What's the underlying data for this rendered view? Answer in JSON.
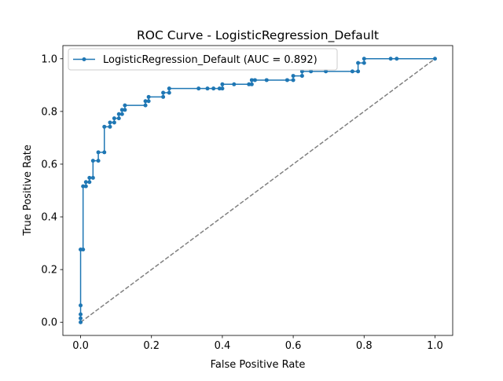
{
  "chart_data": {
    "type": "line",
    "title": "ROC Curve - LogisticRegression_Default",
    "xlabel": "False Positive Rate",
    "ylabel": "True Positive Rate",
    "xlim": [
      -0.05,
      1.05
    ],
    "ylim": [
      -0.05,
      1.05
    ],
    "xticks": [
      "0.0",
      "0.2",
      "0.4",
      "0.6",
      "0.8",
      "1.0"
    ],
    "yticks": [
      "0.0",
      "0.2",
      "0.4",
      "0.6",
      "0.8",
      "1.0"
    ],
    "grid": false,
    "legend_position": "upper-left",
    "series": [
      {
        "name": "LogisticRegression_Default (AUC = 0.892)",
        "color": "#1f77b4",
        "marker": "point",
        "points": [
          [
            0.0,
            0.0
          ],
          [
            0.0,
            0.015
          ],
          [
            0.0,
            0.03
          ],
          [
            0.0,
            0.064
          ],
          [
            0.0,
            0.276
          ],
          [
            0.007,
            0.276
          ],
          [
            0.007,
            0.516
          ],
          [
            0.015,
            0.516
          ],
          [
            0.015,
            0.532
          ],
          [
            0.025,
            0.532
          ],
          [
            0.025,
            0.548
          ],
          [
            0.035,
            0.548
          ],
          [
            0.035,
            0.613
          ],
          [
            0.05,
            0.613
          ],
          [
            0.05,
            0.645
          ],
          [
            0.067,
            0.645
          ],
          [
            0.067,
            0.742
          ],
          [
            0.083,
            0.742
          ],
          [
            0.083,
            0.758
          ],
          [
            0.095,
            0.758
          ],
          [
            0.095,
            0.774
          ],
          [
            0.108,
            0.774
          ],
          [
            0.108,
            0.79
          ],
          [
            0.117,
            0.79
          ],
          [
            0.117,
            0.806
          ],
          [
            0.125,
            0.806
          ],
          [
            0.125,
            0.823
          ],
          [
            0.183,
            0.823
          ],
          [
            0.183,
            0.839
          ],
          [
            0.192,
            0.839
          ],
          [
            0.192,
            0.855
          ],
          [
            0.233,
            0.855
          ],
          [
            0.233,
            0.871
          ],
          [
            0.25,
            0.871
          ],
          [
            0.25,
            0.887
          ],
          [
            0.333,
            0.887
          ],
          [
            0.358,
            0.887
          ],
          [
            0.375,
            0.887
          ],
          [
            0.392,
            0.887
          ],
          [
            0.4,
            0.887
          ],
          [
            0.4,
            0.903
          ],
          [
            0.433,
            0.903
          ],
          [
            0.475,
            0.903
          ],
          [
            0.483,
            0.903
          ],
          [
            0.483,
            0.919
          ],
          [
            0.492,
            0.919
          ],
          [
            0.525,
            0.919
          ],
          [
            0.583,
            0.919
          ],
          [
            0.6,
            0.919
          ],
          [
            0.6,
            0.935
          ],
          [
            0.625,
            0.935
          ],
          [
            0.625,
            0.952
          ],
          [
            0.65,
            0.952
          ],
          [
            0.692,
            0.952
          ],
          [
            0.767,
            0.952
          ],
          [
            0.783,
            0.952
          ],
          [
            0.783,
            0.984
          ],
          [
            0.8,
            0.984
          ],
          [
            0.8,
            1.0
          ],
          [
            0.875,
            1.0
          ],
          [
            0.892,
            1.0
          ],
          [
            1.0,
            1.0
          ]
        ]
      }
    ],
    "reference_line": {
      "style": "dashed",
      "color": "#808080",
      "points": [
        [
          0.0,
          0.0
        ],
        [
          1.0,
          1.0
        ]
      ]
    }
  }
}
